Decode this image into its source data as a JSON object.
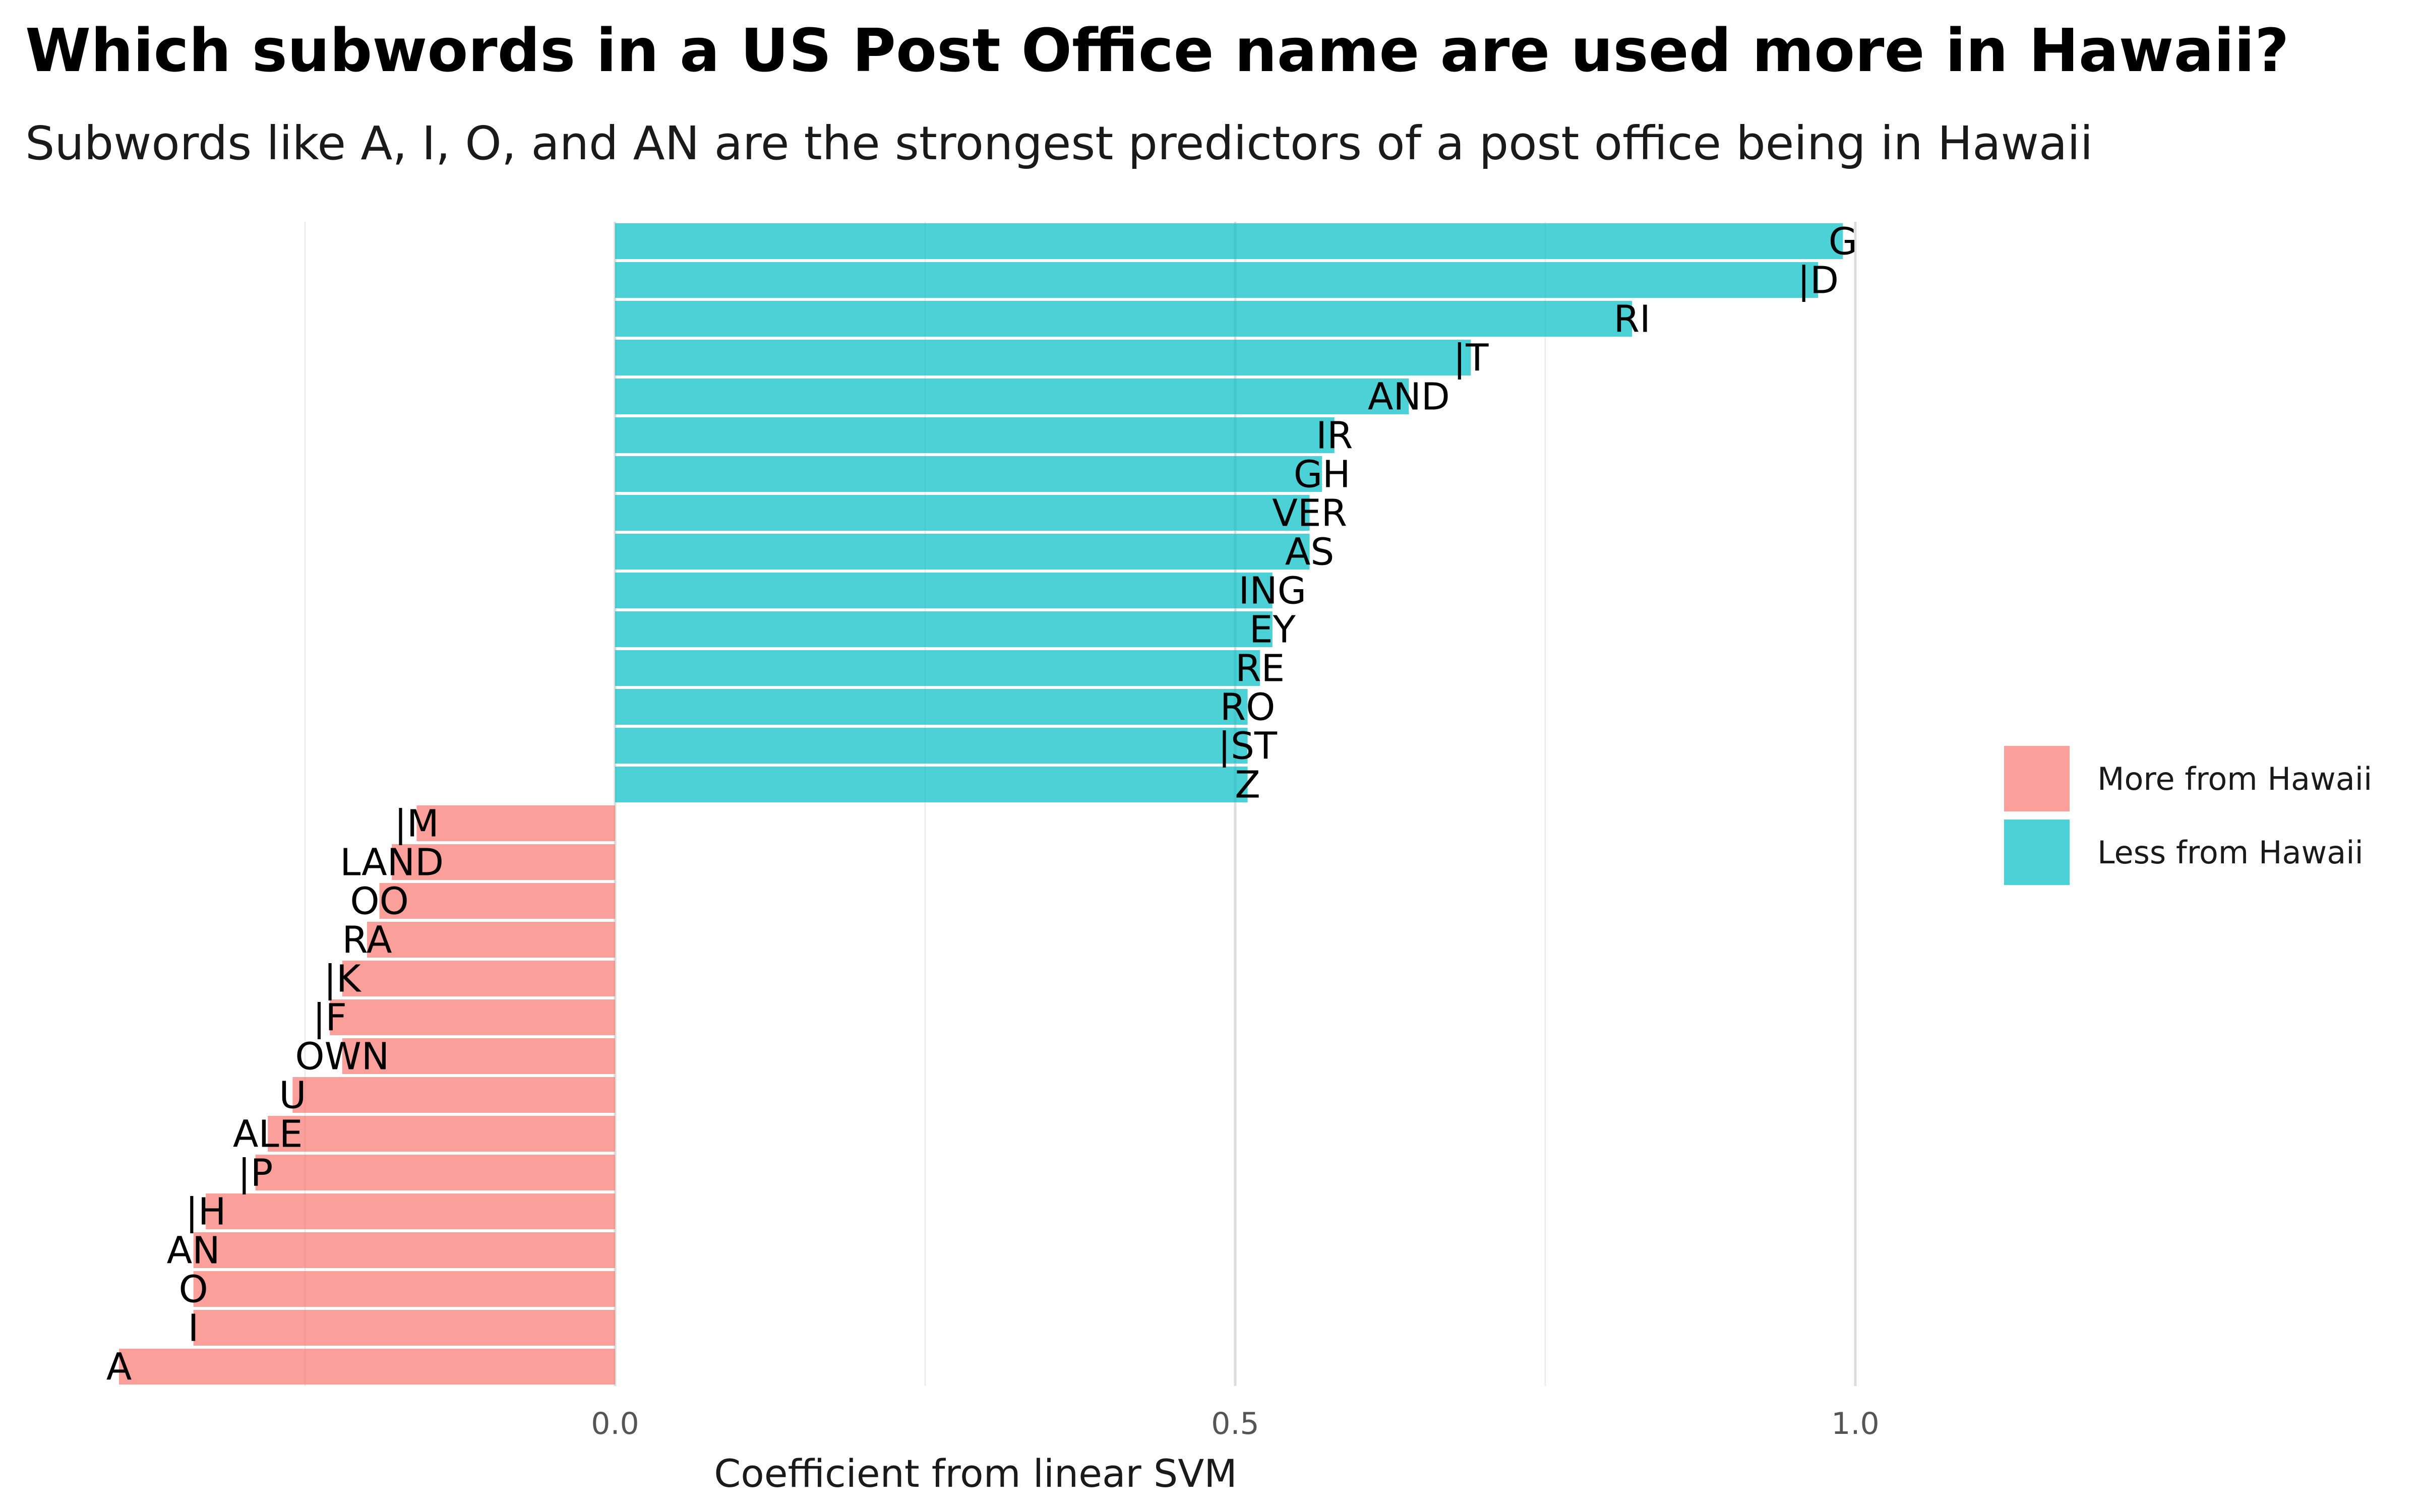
{
  "title": "Which subwords in a US Post Office name are used more in Hawaii?",
  "subtitle": "Subwords like A, I, O, and AN are the strongest predictors of a post office being in Hawaii",
  "chart_data": {
    "type": "bar",
    "orientation": "horizontal",
    "xlabel": "Coefficient from linear SVM",
    "ylabel": "",
    "xlim": [
      -0.4,
      1.35
    ],
    "xticks": [
      0.0,
      0.5,
      1.0
    ],
    "xtick_labels": [
      "0.0",
      "0.5",
      "1.0"
    ],
    "grid": true,
    "legend": {
      "placement": "right",
      "entries": [
        {
          "label": "More from Hawaii",
          "color": "#F8766D"
        },
        {
          "label": "Less from Hawaii",
          "color": "#00BFC4"
        }
      ]
    },
    "bars": [
      {
        "label": "G",
        "value": 0.99,
        "group": "Less from Hawaii"
      },
      {
        "label": "|D",
        "value": 0.97,
        "group": "Less from Hawaii"
      },
      {
        "label": "RI",
        "value": 0.82,
        "group": "Less from Hawaii"
      },
      {
        "label": "|T",
        "value": 0.69,
        "group": "Less from Hawaii"
      },
      {
        "label": "AND",
        "value": 0.64,
        "group": "Less from Hawaii"
      },
      {
        "label": "IR",
        "value": 0.58,
        "group": "Less from Hawaii"
      },
      {
        "label": "GH",
        "value": 0.57,
        "group": "Less from Hawaii"
      },
      {
        "label": "VER",
        "value": 0.56,
        "group": "Less from Hawaii"
      },
      {
        "label": "AS",
        "value": 0.56,
        "group": "Less from Hawaii"
      },
      {
        "label": "ING",
        "value": 0.53,
        "group": "Less from Hawaii"
      },
      {
        "label": "EY",
        "value": 0.53,
        "group": "Less from Hawaii"
      },
      {
        "label": "RE",
        "value": 0.52,
        "group": "Less from Hawaii"
      },
      {
        "label": "RO",
        "value": 0.51,
        "group": "Less from Hawaii"
      },
      {
        "label": "|ST",
        "value": 0.51,
        "group": "Less from Hawaii"
      },
      {
        "label": "Z",
        "value": 0.51,
        "group": "Less from Hawaii"
      },
      {
        "label": "|M",
        "value": -0.16,
        "group": "More from Hawaii"
      },
      {
        "label": "LAND",
        "value": -0.18,
        "group": "More from Hawaii"
      },
      {
        "label": "OO",
        "value": -0.19,
        "group": "More from Hawaii"
      },
      {
        "label": "RA",
        "value": -0.2,
        "group": "More from Hawaii"
      },
      {
        "label": "|K",
        "value": -0.22,
        "group": "More from Hawaii"
      },
      {
        "label": "|F",
        "value": -0.23,
        "group": "More from Hawaii"
      },
      {
        "label": "OWN",
        "value": -0.22,
        "group": "More from Hawaii"
      },
      {
        "label": "U",
        "value": -0.26,
        "group": "More from Hawaii"
      },
      {
        "label": "ALE",
        "value": -0.28,
        "group": "More from Hawaii"
      },
      {
        "label": "|P",
        "value": -0.29,
        "group": "More from Hawaii"
      },
      {
        "label": "|H",
        "value": -0.33,
        "group": "More from Hawaii"
      },
      {
        "label": "AN",
        "value": -0.34,
        "group": "More from Hawaii"
      },
      {
        "label": "O",
        "value": -0.34,
        "group": "More from Hawaii"
      },
      {
        "label": "I",
        "value": -0.34,
        "group": "More from Hawaii"
      },
      {
        "label": "A",
        "value": -0.4,
        "group": "More from Hawaii"
      }
    ]
  }
}
